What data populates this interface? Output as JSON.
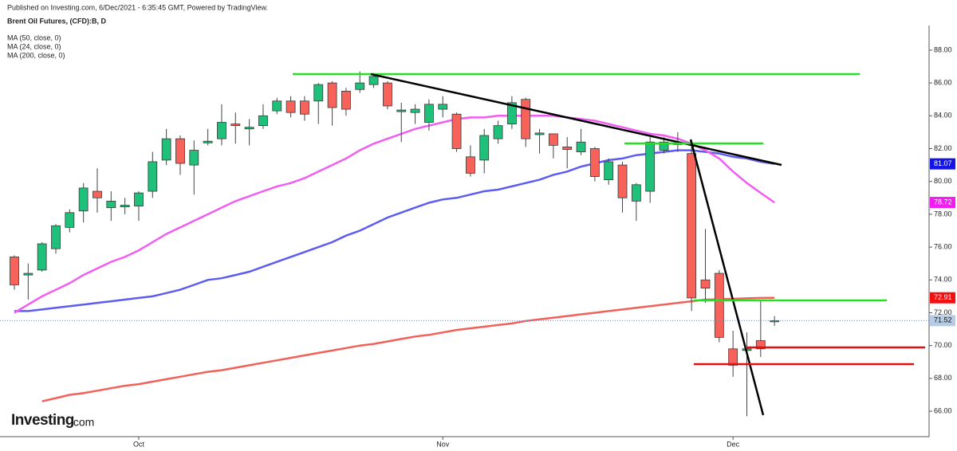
{
  "chart_data": {
    "type": "candlestick",
    "header": "Published on Investing.com, 6/Dec/2021 - 6:35:45 GMT, Powered by TradingView.",
    "title": "Brent Oil Futures, (CFD):B, D",
    "logo": {
      "name": "Investing",
      "suffix": ".com"
    },
    "categories": [
      null,
      null,
      null,
      null,
      null,
      null,
      null,
      null,
      null,
      "Oct",
      null,
      null,
      null,
      null,
      null,
      null,
      null,
      null,
      null,
      null,
      null,
      null,
      null,
      null,
      null,
      null,
      null,
      null,
      null,
      null,
      null,
      "Nov",
      null,
      null,
      null,
      null,
      null,
      null,
      null,
      null,
      null,
      null,
      null,
      null,
      null,
      null,
      null,
      null,
      null,
      null,
      null,
      null,
      "Dec",
      null,
      null,
      null
    ],
    "open": [
      75.4,
      74.3,
      74.6,
      75.9,
      77.2,
      78.2,
      79.4,
      78.4,
      78.45,
      78.5,
      79.4,
      81.3,
      82.6,
      81.0,
      82.35,
      82.6,
      83.5,
      83.2,
      83.4,
      84.3,
      84.9,
      84.9,
      84.9,
      86.0,
      85.5,
      85.6,
      85.9,
      86.0,
      84.25,
      84.2,
      83.6,
      84.4,
      84.1,
      81.5,
      81.3,
      82.6,
      83.5,
      85.0,
      82.85,
      82.9,
      82.1,
      81.8,
      82.0,
      80.1,
      81.0,
      78.8,
      79.4,
      81.9,
      82.25,
      81.7,
      74.0,
      74.4,
      69.8,
      69.7,
      70.3,
      71.45
    ],
    "high": [
      75.5,
      75.0,
      76.3,
      77.4,
      78.3,
      79.9,
      80.8,
      79.4,
      79.0,
      79.4,
      81.8,
      83.2,
      82.8,
      82.5,
      83.2,
      84.7,
      84.2,
      83.8,
      84.7,
      85.1,
      85.2,
      85.2,
      86.0,
      86.1,
      85.7,
      86.7,
      86.5,
      86.1,
      84.8,
      84.7,
      85.0,
      85.2,
      84.2,
      82.2,
      83.2,
      83.7,
      85.2,
      85.1,
      83.2,
      82.9,
      82.7,
      83.2,
      82.1,
      81.4,
      81.2,
      79.9,
      82.7,
      82.7,
      83.0,
      82.5,
      77.1,
      74.6,
      70.9,
      70.8,
      72.8,
      71.8
    ],
    "low": [
      73.4,
      72.8,
      74.5,
      75.6,
      76.9,
      77.5,
      78.1,
      77.6,
      78.0,
      77.6,
      79.0,
      81.0,
      80.4,
      79.2,
      82.2,
      82.2,
      82.3,
      82.2,
      83.2,
      84.1,
      83.9,
      83.7,
      83.5,
      83.4,
      84.0,
      85.4,
      85.7,
      84.4,
      82.4,
      83.5,
      83.1,
      83.9,
      81.8,
      80.3,
      80.5,
      82.3,
      83.2,
      82.1,
      81.7,
      81.4,
      80.8,
      81.6,
      80.0,
      79.8,
      78.1,
      77.6,
      78.7,
      81.7,
      81.8,
      72.1,
      72.6,
      70.2,
      68.1,
      65.7,
      69.3,
      71.2
    ],
    "close": [
      73.7,
      74.4,
      76.2,
      77.3,
      78.1,
      79.6,
      79.0,
      78.8,
      78.55,
      79.3,
      81.2,
      82.6,
      81.1,
      81.9,
      82.45,
      83.6,
      83.4,
      83.3,
      84.0,
      84.9,
      84.2,
      84.1,
      85.9,
      84.5,
      84.4,
      86.0,
      86.4,
      84.6,
      84.35,
      84.4,
      84.7,
      84.7,
      82.0,
      80.5,
      82.8,
      83.4,
      84.8,
      82.6,
      82.95,
      82.2,
      81.95,
      82.4,
      80.3,
      81.2,
      79.0,
      79.8,
      82.4,
      82.4,
      82.35,
      72.9,
      73.5,
      70.5,
      68.8,
      69.8,
      69.8,
      71.52
    ],
    "up_color": "#1fc07a",
    "down_color": "#f7625a",
    "series": [
      {
        "name": "MA (50, close, 0)",
        "color": "#5c5cf2",
        "tag_color": "#1414e6",
        "values": [
          72.1,
          72.1,
          72.2,
          72.3,
          72.4,
          72.5,
          72.6,
          72.7,
          72.8,
          72.9,
          73.0,
          73.2,
          73.4,
          73.7,
          74.0,
          74.1,
          74.3,
          74.5,
          74.8,
          75.1,
          75.4,
          75.7,
          76.0,
          76.3,
          76.7,
          77.0,
          77.4,
          77.8,
          78.1,
          78.4,
          78.7,
          78.9,
          79.0,
          79.2,
          79.4,
          79.5,
          79.7,
          79.9,
          80.1,
          80.4,
          80.6,
          80.9,
          81.1,
          81.3,
          81.4,
          81.6,
          81.7,
          81.8,
          81.9,
          81.9,
          81.8,
          81.7,
          81.5,
          81.4,
          81.2,
          81.07
        ],
        "last": {
          "value": 81.07,
          "label": "81.07"
        }
      },
      {
        "name": "MA (24, close, 0)",
        "color": "#f25cf2",
        "tag_color": "#f01cf0",
        "values": [
          72.0,
          72.5,
          73.0,
          73.4,
          73.8,
          74.3,
          74.7,
          75.1,
          75.4,
          75.8,
          76.3,
          76.8,
          77.2,
          77.6,
          78.0,
          78.4,
          78.8,
          79.1,
          79.4,
          79.7,
          79.9,
          80.2,
          80.6,
          81.0,
          81.4,
          81.9,
          82.3,
          82.6,
          82.9,
          83.2,
          83.4,
          83.6,
          83.8,
          83.9,
          83.9,
          84.0,
          84.0,
          84.0,
          84.0,
          84.0,
          83.9,
          83.8,
          83.7,
          83.5,
          83.3,
          83.1,
          82.9,
          82.8,
          82.6,
          82.3,
          81.9,
          81.4,
          80.6,
          79.9,
          79.3,
          78.72
        ],
        "last": {
          "value": 78.72,
          "label": "78.72"
        }
      },
      {
        "name": "MA (200, close, 0)",
        "color": "#f2605a",
        "tag_color": "#f21010",
        "values": [
          null,
          null,
          66.6,
          66.8,
          67.0,
          67.1,
          67.25,
          67.4,
          67.55,
          67.65,
          67.8,
          67.95,
          68.1,
          68.25,
          68.4,
          68.5,
          68.65,
          68.8,
          68.95,
          69.1,
          69.25,
          69.4,
          69.55,
          69.7,
          69.85,
          70.0,
          70.1,
          70.25,
          70.4,
          70.55,
          70.65,
          70.8,
          70.95,
          71.05,
          71.15,
          71.25,
          71.35,
          71.5,
          71.6,
          71.7,
          71.8,
          71.9,
          72.0,
          72.1,
          72.2,
          72.3,
          72.4,
          72.5,
          72.6,
          72.7,
          72.8,
          72.82,
          72.85,
          72.88,
          72.9,
          72.91
        ],
        "last": {
          "value": 72.91,
          "label": "72.91"
        }
      }
    ],
    "current_price": {
      "value": 71.52,
      "label": "71.52",
      "color": "#6f94c8",
      "tag_color": "#b5cbe6"
    },
    "ylim": [
      64.45,
      89.5
    ],
    "yticks": [
      {
        "value": 66,
        "label": "66.00"
      },
      {
        "value": 68,
        "label": "68.00"
      },
      {
        "value": 70,
        "label": "70.00"
      },
      {
        "value": 72,
        "label": "72.00"
      },
      {
        "value": 74,
        "label": "74.00"
      },
      {
        "value": 76,
        "label": "76.00"
      },
      {
        "value": 78,
        "label": "78.00"
      },
      {
        "value": 80,
        "label": "80.00"
      },
      {
        "value": 82,
        "label": "82.00"
      },
      {
        "value": 84,
        "label": "84.00"
      },
      {
        "value": 86,
        "label": "86.00"
      },
      {
        "value": 88,
        "label": "88.00"
      }
    ]
  }
}
